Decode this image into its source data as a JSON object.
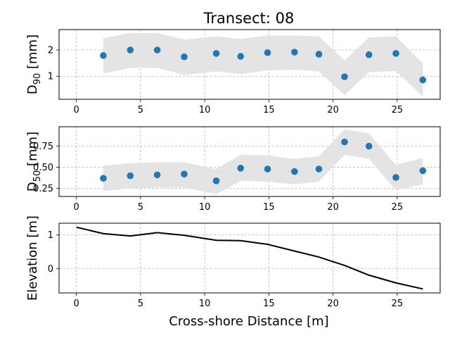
{
  "figure": {
    "title": "Transect: 08",
    "xlabel": "Cross-shore Distance [m]"
  },
  "chart_data": [
    {
      "type": "scatter",
      "ylabel": "D",
      "ylabel_sub": "90",
      "ylabel_unit": " [mm]",
      "xlim": [
        -1.35,
        28.35
      ],
      "ylim": [
        0.12,
        2.78
      ],
      "xticks": [
        0,
        5,
        10,
        15,
        20,
        25
      ],
      "yticks": [
        1,
        2
      ],
      "ytick_labels": [
        "1",
        "2"
      ],
      "grid": true,
      "series": [
        {
          "x": [
            2.1,
            4.2,
            6.3,
            8.4,
            10.9,
            12.8,
            14.9,
            17.0,
            18.9,
            20.9,
            22.8,
            24.9,
            27.0
          ],
          "y": [
            1.79,
            2.0,
            2.0,
            1.74,
            1.87,
            1.76,
            1.9,
            1.92,
            1.84,
            0.98,
            1.82,
            1.87,
            0.86
          ],
          "color": "#1f77b4"
        }
      ],
      "band": {
        "upper": [
          2.45,
          2.65,
          2.65,
          2.4,
          2.52,
          2.42,
          2.55,
          2.55,
          2.52,
          1.6,
          2.48,
          2.52,
          1.48
        ],
        "lower": [
          1.1,
          1.32,
          1.32,
          1.05,
          1.18,
          1.08,
          1.22,
          1.25,
          1.18,
          0.28,
          1.15,
          1.2,
          0.22
        ],
        "color": "#e3e3e3"
      }
    },
    {
      "type": "scatter",
      "ylabel": "D",
      "ylabel_sub": "50",
      "ylabel_unit": " [mm]",
      "xlim": [
        -1.35,
        28.35
      ],
      "ylim": [
        0.155,
        0.98
      ],
      "xticks": [
        0,
        5,
        10,
        15,
        20,
        25
      ],
      "yticks": [
        0.25,
        0.5,
        0.75
      ],
      "ytick_labels": [
        "0.25",
        "0.50",
        "0.75"
      ],
      "grid": true,
      "series": [
        {
          "x": [
            2.1,
            4.2,
            6.3,
            8.4,
            10.9,
            12.8,
            14.9,
            17.0,
            18.9,
            20.9,
            22.8,
            24.9,
            27.0
          ],
          "y": [
            0.37,
            0.4,
            0.41,
            0.42,
            0.34,
            0.49,
            0.48,
            0.45,
            0.48,
            0.8,
            0.75,
            0.38,
            0.46
          ],
          "color": "#1f77b4"
        }
      ],
      "band": {
        "upper": [
          0.52,
          0.55,
          0.56,
          0.56,
          0.48,
          0.65,
          0.64,
          0.6,
          0.63,
          0.95,
          0.9,
          0.53,
          0.61
        ],
        "lower": [
          0.22,
          0.25,
          0.26,
          0.26,
          0.18,
          0.34,
          0.33,
          0.3,
          0.33,
          0.65,
          0.6,
          0.23,
          0.3
        ]
      }
    },
    {
      "type": "line",
      "ylabel": "Elevation [m]",
      "xlim": [
        -1.35,
        28.35
      ],
      "ylim": [
        -0.73,
        1.35
      ],
      "xticks": [
        0,
        5,
        10,
        15,
        20,
        25
      ],
      "yticks": [
        0,
        1
      ],
      "ytick_labels": [
        "0",
        "1"
      ],
      "grid": true,
      "series": [
        {
          "x": [
            0,
            2.1,
            4.2,
            6.3,
            8.4,
            10.9,
            12.8,
            14.9,
            17.0,
            18.9,
            20.9,
            22.8,
            24.9,
            27.0
          ],
          "y": [
            1.23,
            1.04,
            0.97,
            1.07,
            0.99,
            0.84,
            0.83,
            0.72,
            0.52,
            0.34,
            0.09,
            -0.2,
            -0.43,
            -0.61
          ],
          "color": "#000000"
        }
      ]
    }
  ]
}
